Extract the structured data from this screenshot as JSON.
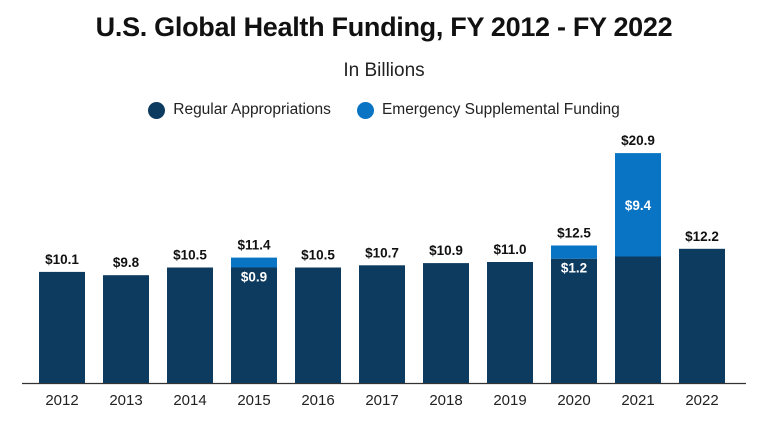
{
  "chart_data": {
    "type": "bar",
    "stacked": true,
    "title": "U.S. Global Health Funding, FY 2012 - FY 2022",
    "subtitle": "In Billions",
    "categories": [
      "2012",
      "2013",
      "2014",
      "2015",
      "2016",
      "2017",
      "2018",
      "2019",
      "2020",
      "2021",
      "2022"
    ],
    "series": [
      {
        "name": "Regular Appropriations",
        "color": "#0d3a5f",
        "values": [
          10.1,
          9.8,
          10.5,
          10.5,
          10.5,
          10.7,
          10.9,
          11.0,
          11.3,
          11.5,
          12.2
        ]
      },
      {
        "name": "Emergency Supplemental Funding",
        "color": "#0a74c4",
        "values": [
          0,
          0,
          0,
          0.9,
          0,
          0,
          0,
          0,
          1.2,
          9.4,
          0
        ]
      }
    ],
    "total_labels": [
      "$10.1",
      "$9.8",
      "$10.5",
      "$11.4",
      "$10.5",
      "$10.7",
      "$10.9",
      "$11.0",
      "$12.5",
      "$20.9",
      "$12.2"
    ],
    "segment_labels": [
      "",
      "",
      "",
      "$0.9",
      "",
      "",
      "",
      "",
      "$1.2",
      "$9.4",
      ""
    ],
    "ylim": [
      0,
      22
    ],
    "legend_position": "top-center",
    "grid": false
  }
}
